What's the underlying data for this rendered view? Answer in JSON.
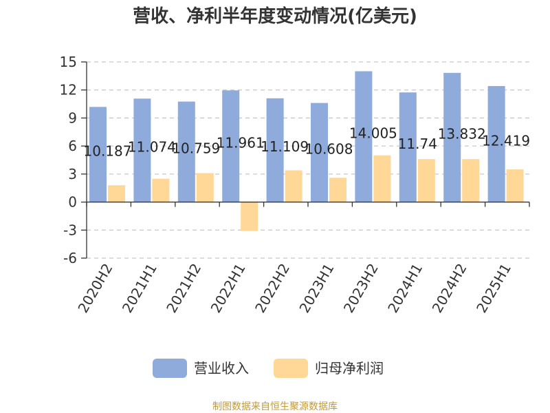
{
  "colors": {
    "revenue": "#8eabdb",
    "net_profit": "#ffd898",
    "axis": "#333333",
    "grid": "#c8c8c8",
    "source": "#c09a3a"
  },
  "chart_data": {
    "type": "bar",
    "title": "营收、净利半年度变动情况(亿美元)",
    "categories": [
      "2020H2",
      "2021H1",
      "2021H2",
      "2022H1",
      "2022H2",
      "2023H1",
      "2023H2",
      "2024H1",
      "2024H2",
      "2025H1"
    ],
    "series": [
      {
        "name": "营业收入",
        "values": [
          10.187,
          11.074,
          10.759,
          11.961,
          11.109,
          10.608,
          14.005,
          11.74,
          13.832,
          12.419
        ],
        "labels": [
          "10.187",
          "11.074",
          "10.759",
          "11.961",
          "11.109",
          "10.608",
          "14.005",
          "11.74",
          "13.832",
          "12.419"
        ]
      },
      {
        "name": "归母净利润",
        "values": [
          1.8,
          2.5,
          3.1,
          -3.1,
          3.4,
          2.6,
          5.0,
          4.6,
          4.6,
          3.5
        ]
      }
    ],
    "ylim": [
      -6,
      15
    ],
    "yticks": [
      15,
      12,
      9,
      6,
      3,
      0,
      -3,
      -6
    ],
    "grid": true,
    "legend_position": "bottom-center"
  },
  "source_text": "制图数据来自恒生聚源数据库"
}
